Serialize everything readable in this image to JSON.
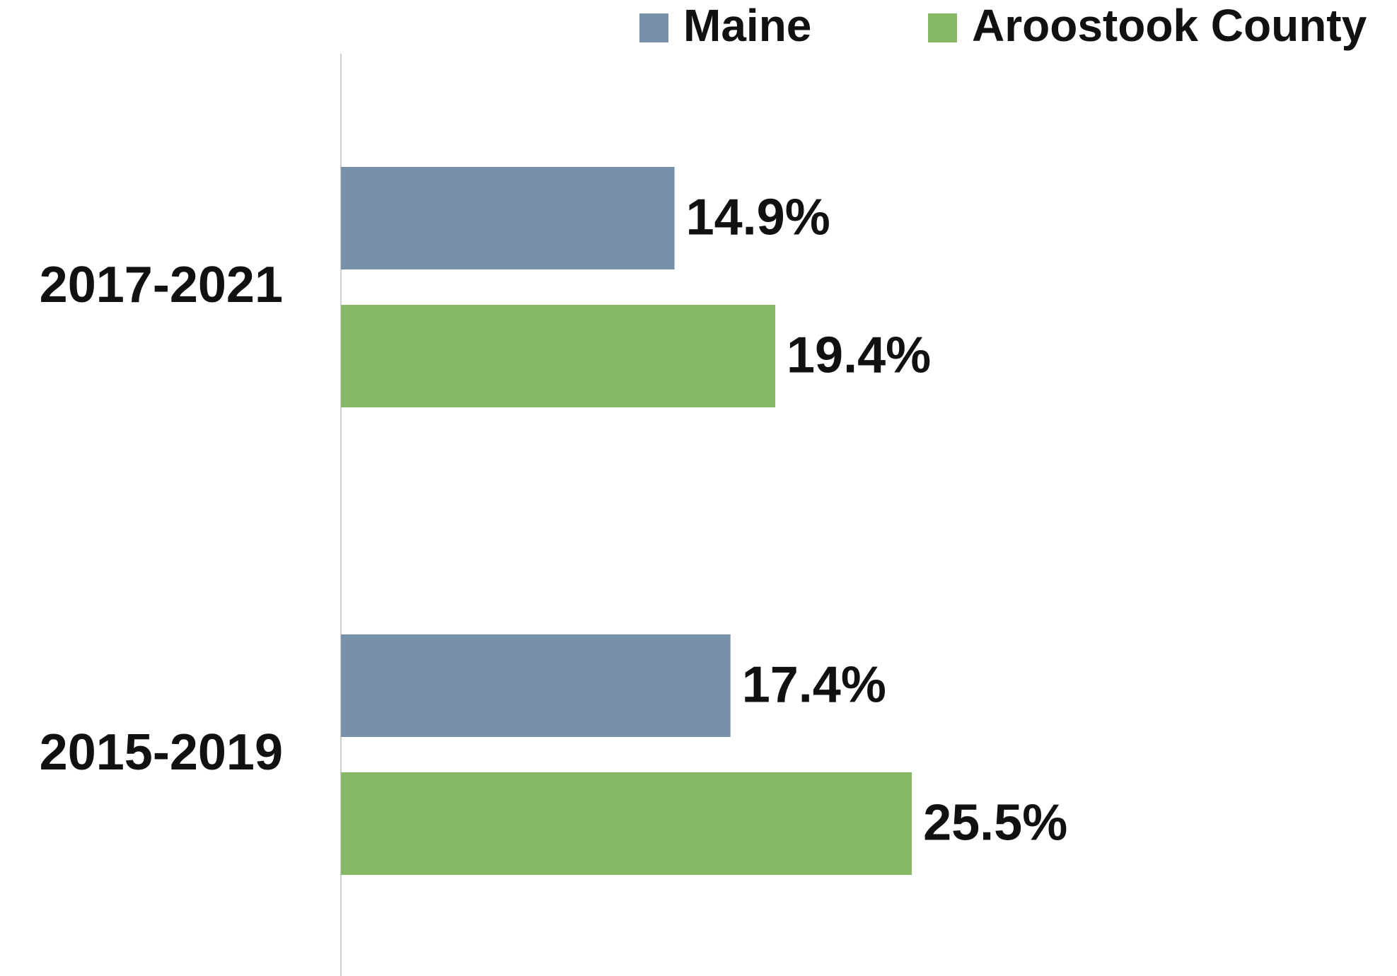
{
  "chart_data": {
    "type": "bar",
    "orientation": "horizontal",
    "categories": [
      "2017-2021",
      "2015-2019"
    ],
    "series": [
      {
        "name": "Maine",
        "color": "#7891aa",
        "values": [
          14.9,
          17.4
        ],
        "value_labels": [
          "14.9%",
          "17.4%"
        ]
      },
      {
        "name": "Aroostook County",
        "color": "#86b865",
        "values": [
          19.4,
          25.5
        ],
        "value_labels": [
          "19.4%",
          "25.5%"
        ]
      }
    ],
    "legend": "top-right"
  }
}
